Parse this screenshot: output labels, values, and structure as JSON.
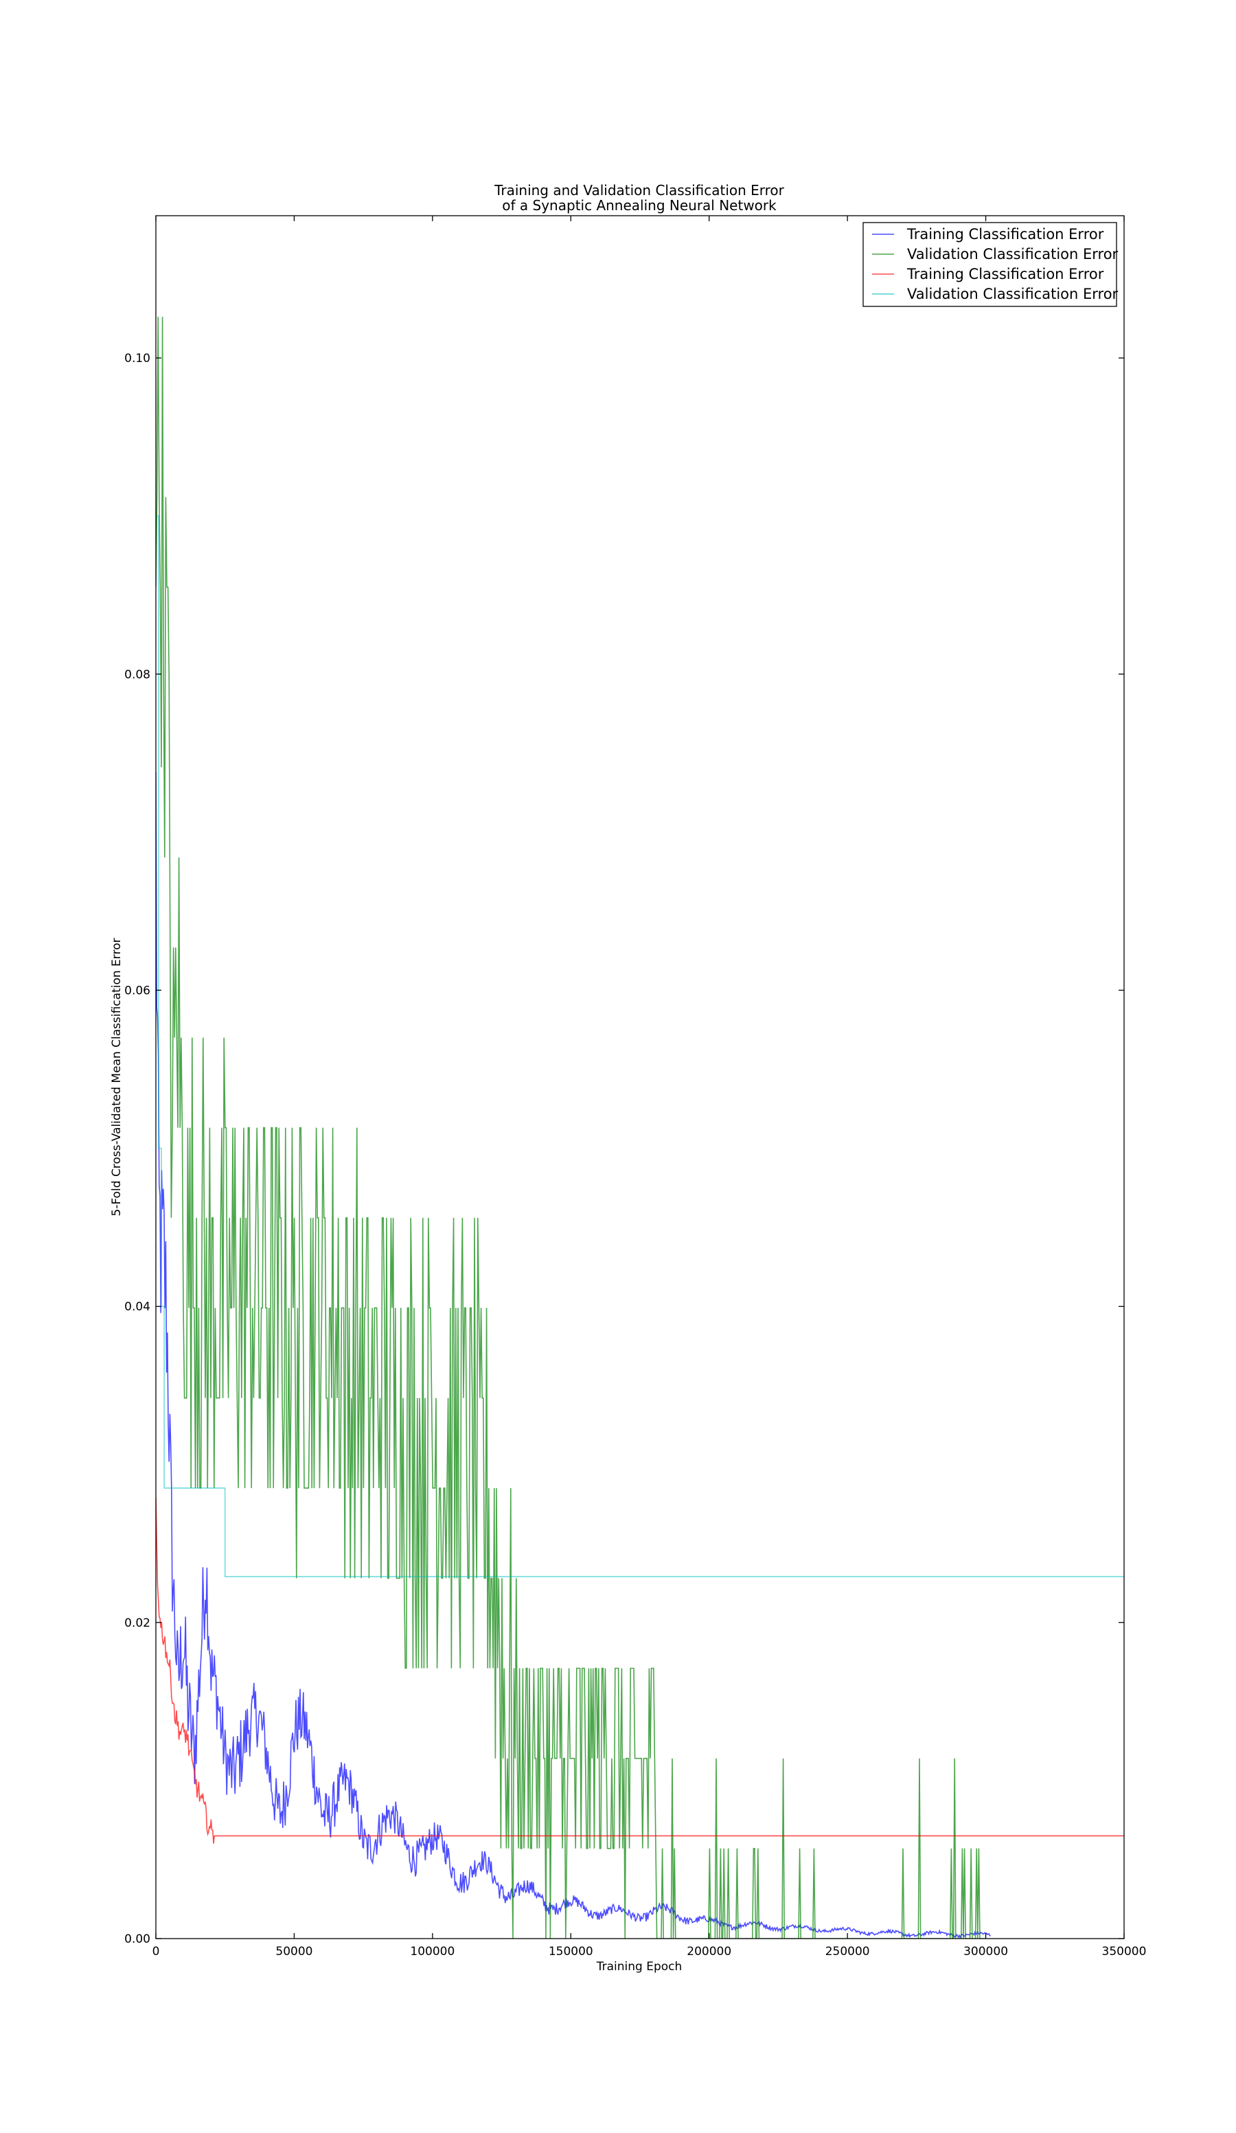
{
  "chart_data": {
    "type": "line",
    "title": "Training and Validation Classification Error\nof a Synaptic Annealing Neural Network",
    "title_lines": [
      "Training and Validation Classification Error",
      "of a Synaptic Annealing Neural Network"
    ],
    "xlabel": "Training Epoch",
    "ylabel": "5-Fold Cross-Validated Mean Classification Error",
    "xlim": [
      0,
      350000
    ],
    "ylim": [
      0,
      0.109
    ],
    "xticks": [
      0,
      50000,
      100000,
      150000,
      200000,
      250000,
      300000,
      350000
    ],
    "xtick_labels": [
      "0",
      "50000",
      "100000",
      "150000",
      "200000",
      "250000",
      "300000",
      "350000"
    ],
    "yticks": [
      0,
      0.02,
      0.04,
      0.06,
      0.08,
      0.1
    ],
    "ytick_labels": [
      "0.00",
      "0.02",
      "0.04",
      "0.06",
      "0.08",
      "0.10"
    ],
    "grid": false,
    "legend_position": "top-right",
    "series": [
      {
        "name": "Training Classification Error",
        "color": "#0000ff",
        "style": "noisy",
        "x": [
          0,
          1000,
          2000,
          3000,
          4000,
          6000,
          8000,
          10000,
          12000,
          14000,
          16000,
          18000,
          20000,
          25000,
          30000,
          35000,
          40000,
          45000,
          50000,
          55000,
          60000,
          65000,
          70000,
          75000,
          80000,
          85000,
          90000,
          95000,
          100000,
          110000,
          120000,
          130000,
          140000,
          150000,
          160000,
          170000,
          180000,
          190000,
          200000,
          210000,
          220000,
          230000,
          240000,
          250000,
          260000,
          270000,
          280000,
          290000,
          300000,
          302000
        ],
        "values": [
          0.07,
          0.042,
          0.038,
          0.036,
          0.032,
          0.02,
          0.016,
          0.022,
          0.018,
          0.014,
          0.018,
          0.021,
          0.014,
          0.012,
          0.014,
          0.012,
          0.011,
          0.01,
          0.012,
          0.011,
          0.01,
          0.009,
          0.008,
          0.007,
          0.0075,
          0.0065,
          0.006,
          0.0065,
          0.0055,
          0.0045,
          0.004,
          0.003,
          0.0025,
          0.002,
          0.0018,
          0.0015,
          0.0017,
          0.0015,
          0.001,
          0.0009,
          0.0008,
          0.0007,
          0.0006,
          0.0005,
          0.0004,
          0.0003,
          0.0003,
          0.0003,
          0.0002,
          0.0002
        ]
      },
      {
        "name": "Validation Classification Error",
        "color": "#008000",
        "style": "noisy",
        "x": [
          0,
          2000,
          4000,
          6000,
          8000,
          10000,
          15000,
          20000,
          30000,
          40000,
          50000,
          60000,
          70000,
          80000,
          90000,
          100000,
          110000,
          120000,
          126000,
          130000,
          140000,
          150000,
          160000,
          170000,
          180000,
          184000,
          190000,
          200000,
          210000,
          220000,
          230000,
          240000,
          250000,
          260000,
          270000,
          280000,
          290000,
          300000
        ],
        "values": [
          0.095,
          0.09,
          0.08,
          0.05,
          0.06,
          0.045,
          0.042,
          0.04,
          0.042,
          0.04,
          0.038,
          0.04,
          0.036,
          0.034,
          0.033,
          0.032,
          0.031,
          0.028,
          0.015,
          0.012,
          0.011,
          0.01,
          0.012,
          0.01,
          0.011,
          0.002,
          0.001,
          0.001,
          0.001,
          0.0008,
          0.0006,
          0.0005,
          0.0015,
          0.001,
          0.002,
          0.0025,
          0.002,
          0.0
        ]
      },
      {
        "name": "Training Classification Error",
        "color": "#ff0000",
        "style": "noisy",
        "x": [
          0,
          500,
          1500,
          3000,
          5000,
          7000,
          9000,
          11000,
          13000,
          15000,
          17000,
          19000,
          20000,
          21000,
          350000
        ],
        "values": [
          0.028,
          0.023,
          0.02,
          0.019,
          0.017,
          0.014,
          0.013,
          0.013,
          0.011,
          0.0095,
          0.0085,
          0.0072,
          0.0068,
          0.0065,
          0.0065
        ]
      },
      {
        "name": "Validation Classification Error",
        "color": "#00bfbf",
        "style": "step",
        "x": [
          0,
          1000,
          2000,
          3000,
          4000,
          20000,
          25000,
          350000
        ],
        "values": [
          0.09,
          0.05,
          0.04,
          0.0285,
          0.0285,
          0.0285,
          0.0229,
          0.0229
        ]
      }
    ]
  }
}
